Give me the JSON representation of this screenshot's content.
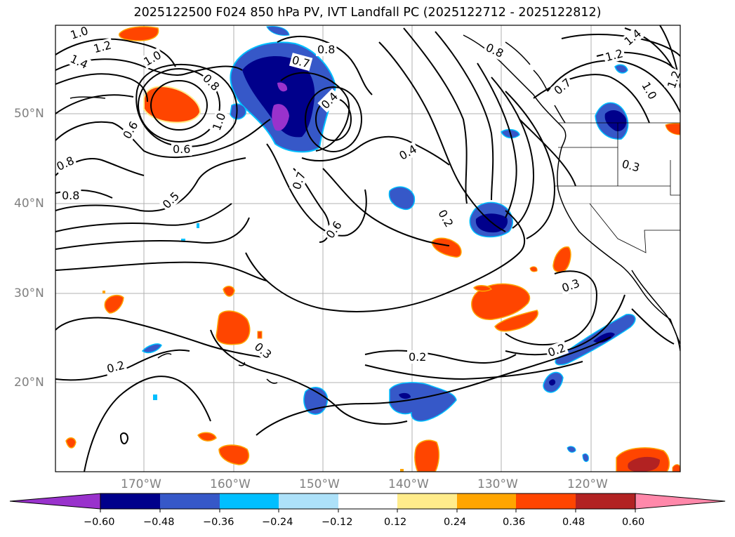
{
  "title": "2025122500 F024 850 hPa PV, IVT Landfall PC (2025122712 - 2025122812)",
  "latitude_labels": [
    "50°N",
    "40°N",
    "30°N",
    "20°N"
  ],
  "longitude_labels": [
    "170°W",
    "160°W",
    "150°W",
    "140°W",
    "130°W",
    "120°W"
  ],
  "contour_labels": [
    {
      "text": "1.0"
    },
    {
      "text": "1.2"
    },
    {
      "text": "1.4"
    },
    {
      "text": "1.0"
    },
    {
      "text": "0.8"
    },
    {
      "text": "0.6"
    },
    {
      "text": "0.6"
    },
    {
      "text": "0.8"
    },
    {
      "text": "0.8"
    },
    {
      "text": "0.5"
    },
    {
      "text": "1.0"
    },
    {
      "text": "0.7"
    },
    {
      "text": "0.8"
    },
    {
      "text": "0.4"
    },
    {
      "text": "0.7"
    },
    {
      "text": "0.6"
    },
    {
      "text": "0.4"
    },
    {
      "text": "0.2"
    },
    {
      "text": "0.8"
    },
    {
      "text": "0.7"
    },
    {
      "text": "1.4"
    },
    {
      "text": "1.2"
    },
    {
      "text": "1.0"
    },
    {
      "text": "1.2"
    },
    {
      "text": "0.3"
    },
    {
      "text": "0.3"
    },
    {
      "text": "0.2"
    },
    {
      "text": "0.2"
    },
    {
      "text": "0.2"
    },
    {
      "text": "0.3"
    }
  ],
  "colorbar": {
    "tick_labels": [
      "−0.60",
      "−0.48",
      "−0.36",
      "−0.24",
      "−0.12",
      "0.12",
      "0.24",
      "0.36",
      "0.48",
      "0.60"
    ],
    "colors": [
      "#9932cc",
      "#00008b",
      "#3658c8",
      "#00bfff",
      "#ade1f9",
      "#ffffff",
      "#ffec8b",
      "#ffa500",
      "#ff4500",
      "#b22222",
      "#ff88aa"
    ]
  },
  "shading_colors": {
    "dark_blue": "#00008b",
    "blue": "#3658c8",
    "purple": "#9932cc",
    "cyan": "#00bfff",
    "orange_red": "#ff4500",
    "orange": "#ffa500",
    "yellow": "#ffec8b",
    "dark_red": "#b22222"
  }
}
